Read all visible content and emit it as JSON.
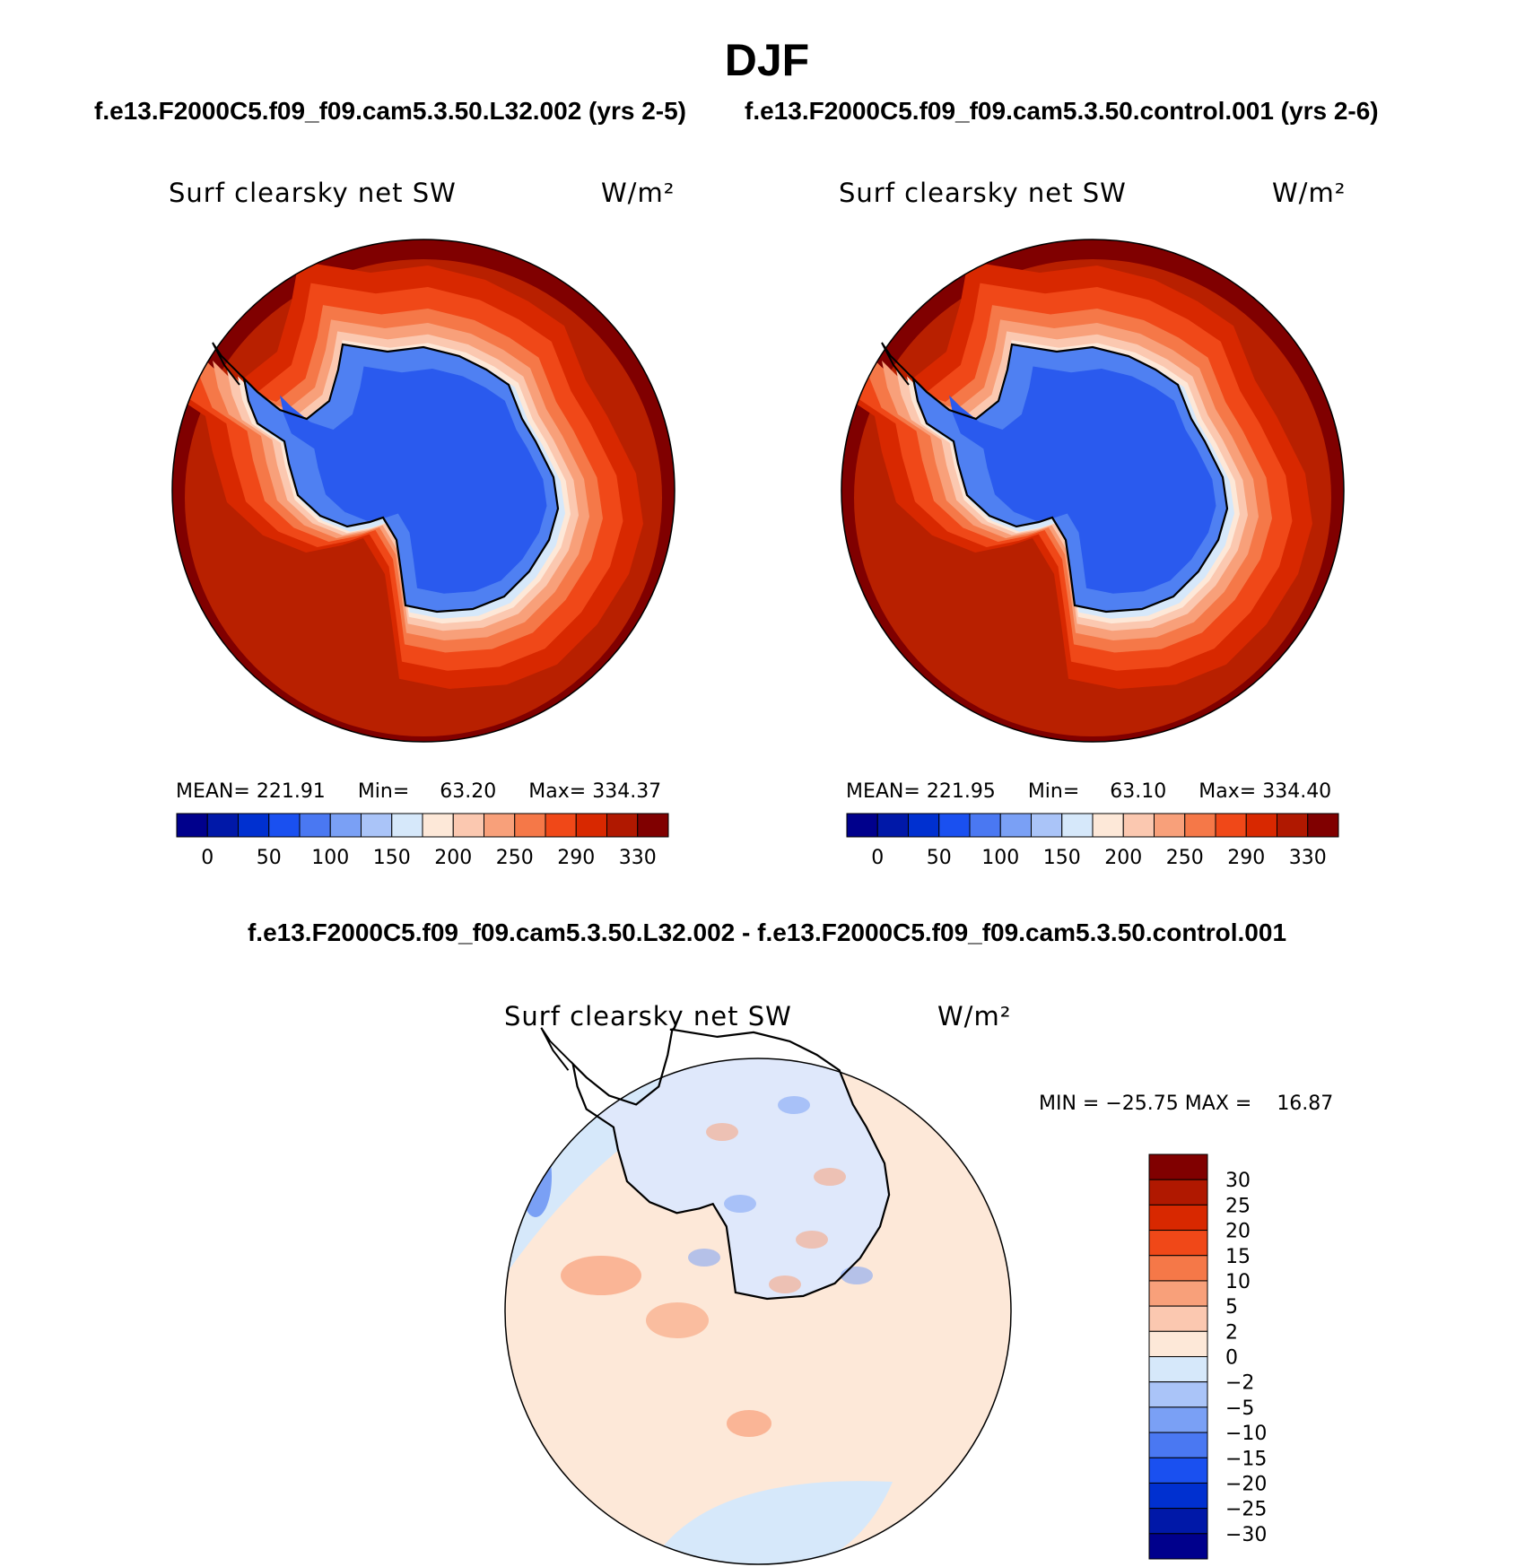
{
  "title": "DJF",
  "case_titles": [
    "f.e13.F2000C5.f09_f09.cam5.3.50.L32.002 (yrs 2-5)",
    "f.e13.F2000C5.f09_f09.cam5.3.50.control.001 (yrs 2-6)"
  ],
  "diff_title": "f.e13.F2000C5.f09_f09.cam5.3.50.L32.002 - f.e13.F2000C5.f09_f09.cam5.3.50.control.001",
  "chart_data": [
    {
      "type": "heatmap",
      "projection": "south polar stereographic",
      "variable": "Surf clearsky net SW",
      "units": "W/m²",
      "stats": {
        "mean_label": "MEAN=",
        "mean": "221.91",
        "min_label": "Min=",
        "min": "63.20",
        "max_label": "Max=",
        "max": "334.37"
      },
      "colorbar_labels": [
        "0",
        "50",
        "100",
        "150",
        "200",
        "250",
        "290",
        "330"
      ],
      "colorbar_colors": [
        "#00008c",
        "#0018a8",
        "#0030d0",
        "#1a50f0",
        "#4a78f2",
        "#7aa0f5",
        "#aac4f8",
        "#d6e8fa",
        "#fde8d8",
        "#fbc8b0",
        "#f8a07a",
        "#f57848",
        "#f04818",
        "#d82800",
        "#b01800",
        "#800000"
      ],
      "fill_colors": {
        "ice": "#2a5aee",
        "ice_light": "#4f80f2",
        "ocean": "#b82000",
        "ocean_edge": "#800000"
      }
    },
    {
      "type": "heatmap",
      "projection": "south polar stereographic",
      "variable": "Surf clearsky net SW",
      "units": "W/m²",
      "stats": {
        "mean_label": "MEAN=",
        "mean": "221.95",
        "min_label": "Min=",
        "min": "63.10",
        "max_label": "Max=",
        "max": "334.40"
      },
      "colorbar_labels": [
        "0",
        "50",
        "100",
        "150",
        "200",
        "250",
        "290",
        "330"
      ],
      "colorbar_colors": [
        "#00008c",
        "#0018a8",
        "#0030d0",
        "#1a50f0",
        "#4a78f2",
        "#7aa0f5",
        "#aac4f8",
        "#d6e8fa",
        "#fde8d8",
        "#fbc8b0",
        "#f8a07a",
        "#f57848",
        "#f04818",
        "#d82800",
        "#b01800",
        "#800000"
      ],
      "fill_colors": {
        "ice": "#2a5aee",
        "ice_light": "#4f80f2",
        "ocean": "#b82000",
        "ocean_edge": "#800000"
      }
    },
    {
      "type": "heatmap",
      "projection": "south polar stereographic",
      "variable": "Surf clearsky net SW",
      "units": "W/m²",
      "stats": {
        "min_label": "MIN =",
        "min": "−25.75",
        "max_label": "MAX =",
        "max": "16.87"
      },
      "colorbar_labels": [
        "30",
        "25",
        "20",
        "15",
        "10",
        "5",
        "2",
        "0",
        "−2",
        "−5",
        "−10",
        "−15",
        "−20",
        "−25",
        "−30"
      ],
      "colorbar_colors": [
        "#800000",
        "#b01800",
        "#d82800",
        "#f04818",
        "#f57848",
        "#f8a07a",
        "#fbc8b0",
        "#fde8d8",
        "#d6e8fa",
        "#aac4f8",
        "#7aa0f5",
        "#4a78f2",
        "#1a50f0",
        "#0030d0",
        "#0018a8",
        "#00008c"
      ],
      "fill_colors": {
        "ocean": "#fde8d8",
        "ocean_cool": "#d6e8fa",
        "warm": "#f8a07a",
        "cool": "#7aa0f5",
        "strong_cool": "#1a50f0"
      }
    }
  ]
}
